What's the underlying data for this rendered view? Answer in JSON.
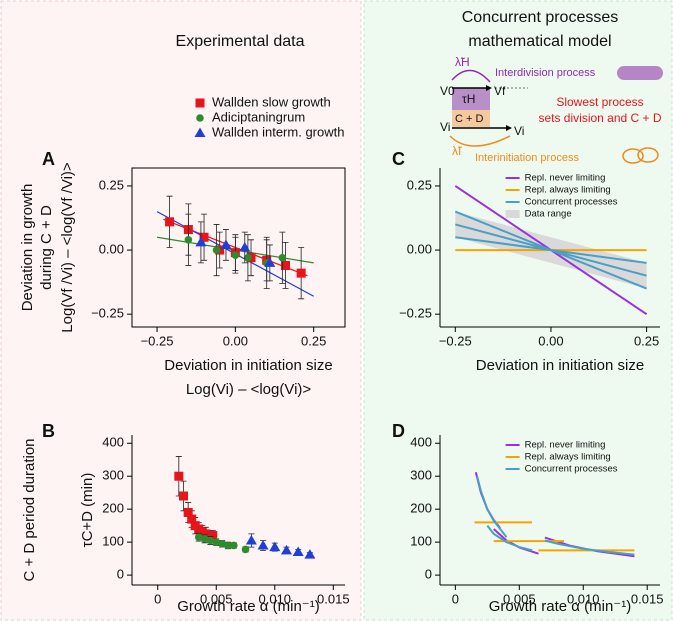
{
  "headers": {
    "left": "Experimental data",
    "right": [
      "Concurrent processes",
      "mathematical model"
    ]
  },
  "diagram": {
    "lambda_h": "λ̃H",
    "interdivision": "Interdivision process",
    "v0": "V0",
    "tau_h": "τH",
    "vf": "Vf",
    "cd": "C + D",
    "vi_start": "Vi",
    "vi_end": "Vi",
    "slowest": [
      "Slowest process",
      "sets division and C + D"
    ],
    "lambda_i": "λ̃I",
    "interinitiation": "Interinitiation process"
  },
  "chart_data": [
    {
      "type": "scatter",
      "panel": "A",
      "ylabel": [
        "Deviation in growth",
        "during C + D",
        "Log(Vf /Vi) – <log(Vf /Vi)>"
      ],
      "xlabel": [
        "Deviation in initiation size",
        "Log(Vi) – <log(Vi)>"
      ],
      "xlim": [
        -0.33,
        0.35
      ],
      "ylim": [
        -0.3,
        0.32
      ],
      "xticks": [
        {
          "value": -0.25,
          "label": "−0.25"
        },
        {
          "value": 0,
          "label": "0.00"
        },
        0.25
      ],
      "yticks": [
        {
          "value": -0.25,
          "label": "−0.25"
        },
        {
          "value": 0,
          "label": "0.00"
        },
        0.25
      ],
      "legend": "above",
      "series": [
        {
          "name": "Wallden slow growth",
          "color": "#e8141c",
          "marker": "square",
          "x": [
            -0.21,
            -0.15,
            -0.1,
            -0.05,
            0.0,
            0.05,
            0.1,
            0.16,
            0.21
          ],
          "values": [
            0.11,
            0.08,
            0.05,
            0.0,
            -0.01,
            -0.03,
            -0.04,
            -0.06,
            -0.09
          ],
          "errors": [
            0.1,
            0.1,
            0.09,
            0.07,
            0.07,
            0.07,
            0.08,
            0.09,
            0.1
          ]
        },
        {
          "name": "Adiciptaningrum",
          "color": "#2e8b2e",
          "marker": "circle",
          "x": [
            -0.15,
            -0.06,
            0.0,
            0.04,
            0.1,
            0.15
          ],
          "values": [
            0.04,
            0.0,
            -0.02,
            -0.03,
            -0.05,
            -0.03
          ],
          "errors": [
            0.1,
            0.1,
            0.07,
            0.09,
            0.1,
            0.1
          ]
        },
        {
          "name": "Wallden interm. growth",
          "color": "#1f3fd6",
          "marker": "triangle",
          "x": [
            -0.11,
            -0.03,
            0.03,
            0.11
          ],
          "values": [
            0.03,
            0.02,
            0.01,
            -0.05
          ],
          "errors": [
            0.08,
            0.06,
            0.06,
            0.07
          ]
        }
      ],
      "fits": [
        {
          "color": "#e8141c",
          "x": [
            -0.23,
            0.23
          ],
          "values": [
            0.12,
            -0.1
          ]
        },
        {
          "color": "#2e8b2e",
          "x": [
            -0.25,
            0.25
          ],
          "values": [
            0.05,
            -0.05
          ]
        },
        {
          "color": "#1f3fd6",
          "x": [
            -0.25,
            0.25
          ],
          "values": [
            0.15,
            -0.18
          ]
        }
      ]
    },
    {
      "type": "scatter",
      "panel": "B",
      "ylabel": [
        "C + D period duration",
        "τC+D (min)"
      ],
      "xlabel": [
        "Growth rate α (min⁻¹)"
      ],
      "xlim": [
        -0.0022,
        0.016
      ],
      "ylim": [
        -30,
        425
      ],
      "xticks": [
        0,
        0.005,
        {
          "value": 0.01,
          "label": "0.010"
        },
        0.015
      ],
      "yticks": [
        0,
        100,
        200,
        300,
        400
      ],
      "series": [
        {
          "color": "#e8141c",
          "marker": "square",
          "x": [
            0.0018,
            0.0022,
            0.0026,
            0.0029,
            0.0032,
            0.0035,
            0.0038,
            0.0041,
            0.0044,
            0.0047
          ],
          "values": [
            300,
            240,
            190,
            170,
            150,
            140,
            130,
            125,
            120,
            120
          ],
          "errors": [
            60,
            45,
            30,
            25,
            25,
            20,
            20,
            20,
            15,
            15
          ]
        },
        {
          "color": "#2e8b2e",
          "marker": "circle",
          "x": [
            0.0035,
            0.004,
            0.0045,
            0.005,
            0.0055,
            0.006,
            0.0065,
            0.0075
          ],
          "values": [
            115,
            110,
            105,
            100,
            95,
            90,
            90,
            78
          ],
          "errors": [
            12,
            12,
            12,
            10,
            10,
            10,
            8,
            8
          ]
        },
        {
          "color": "#1f3fd6",
          "marker": "triangle",
          "x": [
            0.008,
            0.009,
            0.01,
            0.011,
            0.012,
            0.013
          ],
          "values": [
            105,
            90,
            85,
            75,
            70,
            62
          ],
          "errors": [
            20,
            15,
            12,
            10,
            8,
            6
          ]
        }
      ]
    },
    {
      "type": "line",
      "panel": "C",
      "xlabel": [
        "Deviation in initiation size"
      ],
      "xlim": [
        -0.29,
        0.285
      ],
      "ylim": [
        -0.3,
        0.32
      ],
      "xticks": [
        {
          "value": -0.25,
          "label": "−0.25"
        },
        {
          "value": 0,
          "label": "0.00"
        },
        0.25
      ],
      "yticks": [
        {
          "value": -0.25,
          "label": "−0.25"
        },
        {
          "value": 0,
          "label": "0.00"
        },
        0.25
      ],
      "legend": "upper right",
      "band": {
        "name": "Data range",
        "color": "#d9d9d9",
        "x": [
          -0.25,
          0.25
        ],
        "upper": [
          0.15,
          -0.05
        ],
        "lower": [
          0.05,
          -0.15
        ]
      },
      "series": [
        {
          "name": "Repl. never limiting",
          "color": "#9b30e0",
          "x": [
            -0.25,
            0.25
          ],
          "values": [
            0.25,
            -0.25
          ]
        },
        {
          "name": "Repl. always limiting",
          "color": "#f5a300",
          "x": [
            -0.25,
            0.25
          ],
          "values": [
            0,
            0
          ]
        },
        {
          "name": "Concurrent processes",
          "color": "#4a9fc4",
          "x": [
            -0.25,
            0.25,
            null,
            -0.25,
            0.25,
            null,
            -0.25,
            0.25
          ],
          "values": [
            0.15,
            -0.15,
            null,
            0.1,
            -0.1,
            null,
            0.05,
            -0.05
          ]
        }
      ]
    },
    {
      "type": "line",
      "panel": "D",
      "xlabel": [
        "Growth rate α (min⁻¹)"
      ],
      "xlim": [
        -0.0012,
        0.016
      ],
      "ylim": [
        -30,
        425
      ],
      "xticks": [
        0,
        0.005,
        {
          "value": 0.01,
          "label": "0.010"
        },
        0.015
      ],
      "yticks": [
        0,
        100,
        200,
        300,
        400
      ],
      "legend": "upper right",
      "series": [
        {
          "name": "Repl. never limiting",
          "color": "#9b30e0",
          "x": [
            0.0016,
            0.002,
            0.0025,
            0.003,
            0.0035,
            null,
            0.003,
            0.004,
            0.005,
            0.0065,
            null,
            0.007,
            0.009,
            0.011,
            0.014
          ],
          "values": [
            312,
            250,
            200,
            167,
            143,
            null,
            140,
            105,
            84,
            65,
            null,
            114,
            89,
            73,
            57
          ]
        },
        {
          "name": "Repl. always limiting",
          "color": "#f5a300",
          "x": [
            0.0015,
            0.006,
            null,
            0.003,
            0.0085,
            null,
            0.0065,
            0.014
          ],
          "values": [
            160,
            160,
            null,
            103,
            103,
            null,
            75,
            75
          ]
        },
        {
          "name": "Concurrent processes",
          "color": "#4a9fc4",
          "x": [
            0.0017,
            0.002,
            0.0025,
            0.003,
            0.004,
            null,
            0.0025,
            0.003,
            0.004,
            0.005,
            0.006,
            null,
            0.007,
            0.008,
            0.01,
            0.012,
            0.014
          ],
          "values": [
            300,
            255,
            200,
            165,
            115,
            null,
            150,
            125,
            100,
            85,
            75,
            null,
            105,
            95,
            80,
            70,
            62
          ]
        }
      ]
    }
  ]
}
